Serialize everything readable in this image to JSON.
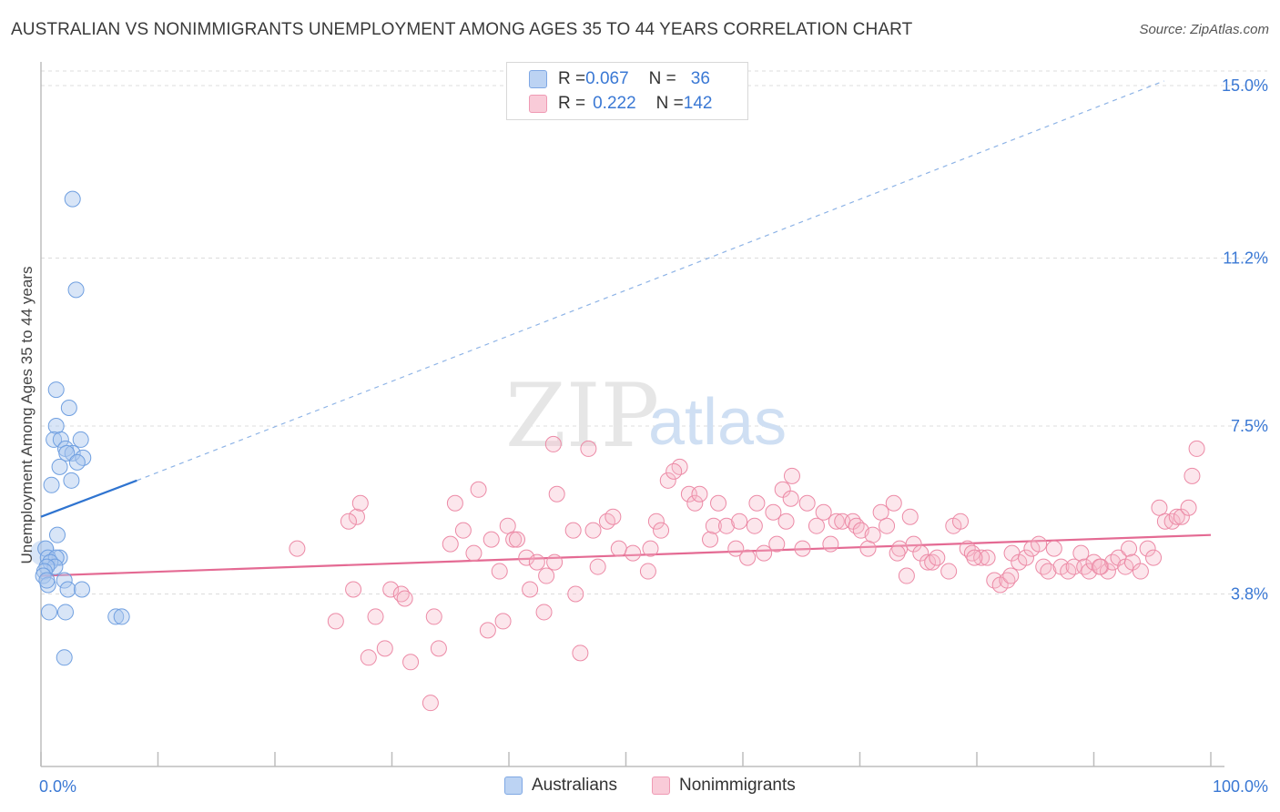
{
  "title": "AUSTRALIAN VS NONIMMIGRANTS UNEMPLOYMENT AMONG AGES 35 TO 44 YEARS CORRELATION CHART",
  "source": "Source: ZipAtlas.com",
  "watermark": {
    "zip": "ZIP",
    "atlas": "atlas"
  },
  "legend": {
    "rows": [
      {
        "r_label": "R = ",
        "r_value": "0.067",
        "n_label": "N = ",
        "n_value": "36",
        "color": "#a9c6ee"
      },
      {
        "r_label": "R = ",
        "r_value": "0.222",
        "n_label": "N = ",
        "n_value": "142",
        "color": "#f5b6c8"
      }
    ]
  },
  "bottom_legend": [
    {
      "label": "Australians",
      "color": "#a9c6ee"
    },
    {
      "label": "Nonimmigrants",
      "color": "#f5b6c8"
    }
  ],
  "chart_data": {
    "type": "scatter",
    "xlabel": "",
    "ylabel": "Unemployment Among Ages 35 to 44 years",
    "xlim": [
      0,
      100
    ],
    "ylim": [
      0,
      15.4
    ],
    "x_tick_labels": [
      "0.0%",
      "100.0%"
    ],
    "y_ticks": [
      3.8,
      7.5,
      11.2,
      15.0
    ],
    "y_tick_labels": [
      "3.8%",
      "7.5%",
      "11.2%",
      "15.0%"
    ],
    "grid": "horizontal dashed",
    "legend_position": "top-center",
    "series": [
      {
        "name": "Australians",
        "color": "#6f9fe0",
        "points": [
          [
            2.7,
            12.5
          ],
          [
            3.0,
            10.5
          ],
          [
            1.3,
            8.3
          ],
          [
            2.4,
            7.9
          ],
          [
            1.3,
            7.5
          ],
          [
            1.1,
            7.2
          ],
          [
            1.7,
            7.2
          ],
          [
            3.4,
            7.2
          ],
          [
            2.1,
            7.0
          ],
          [
            2.7,
            6.9
          ],
          [
            2.2,
            6.9
          ],
          [
            3.6,
            6.8
          ],
          [
            3.1,
            6.7
          ],
          [
            1.6,
            6.6
          ],
          [
            2.6,
            6.3
          ],
          [
            0.9,
            6.2
          ],
          [
            1.4,
            5.1
          ],
          [
            0.4,
            4.8
          ],
          [
            1.6,
            4.6
          ],
          [
            0.6,
            4.6
          ],
          [
            1.3,
            4.6
          ],
          [
            0.8,
            4.5
          ],
          [
            1.2,
            4.4
          ],
          [
            0.5,
            4.4
          ],
          [
            0.3,
            4.3
          ],
          [
            0.2,
            4.2
          ],
          [
            2.0,
            4.1
          ],
          [
            0.6,
            4.0
          ],
          [
            0.5,
            4.1
          ],
          [
            2.3,
            3.9
          ],
          [
            3.5,
            3.9
          ],
          [
            0.7,
            3.4
          ],
          [
            2.1,
            3.4
          ],
          [
            6.4,
            3.3
          ],
          [
            6.9,
            3.3
          ],
          [
            2.0,
            2.4
          ]
        ]
      },
      {
        "name": "Nonimmigrants",
        "color": "#ec8aa6",
        "points": [
          [
            21.9,
            4.8
          ],
          [
            26.7,
            3.9
          ],
          [
            27.0,
            5.5
          ],
          [
            27.3,
            5.8
          ],
          [
            25.2,
            3.2
          ],
          [
            26.3,
            5.4
          ],
          [
            28.0,
            2.4
          ],
          [
            28.6,
            3.3
          ],
          [
            29.4,
            2.6
          ],
          [
            29.9,
            3.9
          ],
          [
            30.8,
            3.8
          ],
          [
            31.1,
            3.7
          ],
          [
            31.6,
            2.3
          ],
          [
            33.3,
            1.4
          ],
          [
            33.6,
            3.3
          ],
          [
            34.0,
            2.6
          ],
          [
            35.0,
            4.9
          ],
          [
            35.4,
            5.8
          ],
          [
            36.1,
            5.2
          ],
          [
            37.0,
            4.7
          ],
          [
            37.4,
            6.1
          ],
          [
            38.2,
            3.0
          ],
          [
            38.5,
            5.0
          ],
          [
            39.2,
            4.3
          ],
          [
            39.5,
            3.2
          ],
          [
            39.9,
            5.3
          ],
          [
            40.4,
            5.0
          ],
          [
            40.7,
            5.0
          ],
          [
            41.5,
            4.6
          ],
          [
            41.8,
            3.9
          ],
          [
            42.4,
            4.5
          ],
          [
            43.0,
            3.4
          ],
          [
            43.2,
            4.2
          ],
          [
            43.8,
            7.1
          ],
          [
            43.9,
            4.5
          ],
          [
            44.1,
            6.0
          ],
          [
            45.5,
            5.2
          ],
          [
            45.7,
            3.8
          ],
          [
            46.1,
            2.5
          ],
          [
            46.8,
            7.0
          ],
          [
            47.2,
            5.2
          ],
          [
            47.6,
            4.4
          ],
          [
            48.4,
            5.4
          ],
          [
            48.9,
            5.5
          ],
          [
            49.4,
            4.8
          ],
          [
            50.6,
            4.7
          ],
          [
            51.9,
            4.3
          ],
          [
            52.1,
            4.8
          ],
          [
            52.6,
            5.4
          ],
          [
            53.0,
            5.2
          ],
          [
            53.6,
            6.3
          ],
          [
            54.6,
            6.6
          ],
          [
            54.1,
            6.5
          ],
          [
            55.4,
            6.0
          ],
          [
            55.9,
            5.8
          ],
          [
            56.3,
            6.0
          ],
          [
            57.2,
            5.0
          ],
          [
            57.5,
            5.3
          ],
          [
            57.9,
            5.8
          ],
          [
            58.6,
            5.3
          ],
          [
            59.4,
            4.8
          ],
          [
            59.7,
            5.4
          ],
          [
            60.4,
            4.6
          ],
          [
            61.0,
            5.3
          ],
          [
            61.2,
            5.8
          ],
          [
            61.8,
            4.7
          ],
          [
            62.6,
            5.6
          ],
          [
            62.9,
            4.9
          ],
          [
            63.4,
            6.1
          ],
          [
            63.7,
            5.4
          ],
          [
            64.1,
            5.9
          ],
          [
            64.2,
            6.4
          ],
          [
            65.1,
            4.8
          ],
          [
            65.5,
            5.8
          ],
          [
            66.3,
            5.3
          ],
          [
            66.9,
            5.6
          ],
          [
            67.5,
            4.9
          ],
          [
            68.0,
            5.4
          ],
          [
            68.5,
            5.4
          ],
          [
            69.4,
            5.4
          ],
          [
            69.7,
            5.3
          ],
          [
            70.1,
            5.2
          ],
          [
            70.7,
            4.8
          ],
          [
            71.1,
            5.1
          ],
          [
            71.8,
            5.6
          ],
          [
            72.3,
            5.3
          ],
          [
            72.9,
            5.8
          ],
          [
            73.4,
            4.8
          ],
          [
            74.0,
            4.2
          ],
          [
            74.3,
            5.5
          ],
          [
            74.6,
            4.9
          ],
          [
            75.2,
            4.7
          ],
          [
            75.8,
            4.5
          ],
          [
            76.2,
            4.5
          ],
          [
            76.6,
            4.6
          ],
          [
            78.0,
            5.3
          ],
          [
            78.6,
            5.4
          ],
          [
            79.2,
            4.8
          ],
          [
            79.6,
            4.7
          ],
          [
            80.4,
            4.6
          ],
          [
            80.9,
            4.6
          ],
          [
            81.5,
            4.1
          ],
          [
            82.0,
            4.0
          ],
          [
            82.6,
            4.1
          ],
          [
            83.0,
            4.7
          ],
          [
            83.6,
            4.5
          ],
          [
            84.2,
            4.6
          ],
          [
            84.7,
            4.8
          ],
          [
            85.3,
            4.9
          ],
          [
            85.7,
            4.4
          ],
          [
            86.1,
            4.3
          ],
          [
            86.6,
            4.8
          ],
          [
            87.2,
            4.4
          ],
          [
            87.8,
            4.3
          ],
          [
            88.3,
            4.4
          ],
          [
            88.9,
            4.7
          ],
          [
            89.2,
            4.4
          ],
          [
            89.6,
            4.3
          ],
          [
            90.0,
            4.5
          ],
          [
            90.6,
            4.4
          ],
          [
            91.2,
            4.3
          ],
          [
            91.6,
            4.5
          ],
          [
            92.1,
            4.6
          ],
          [
            92.7,
            4.4
          ],
          [
            93.0,
            4.8
          ],
          [
            93.3,
            4.5
          ],
          [
            94.0,
            4.3
          ],
          [
            94.6,
            4.8
          ],
          [
            95.1,
            4.6
          ],
          [
            95.6,
            5.7
          ],
          [
            96.1,
            5.4
          ],
          [
            96.7,
            5.4
          ],
          [
            97.1,
            5.5
          ],
          [
            97.5,
            5.5
          ],
          [
            98.1,
            5.7
          ],
          [
            98.4,
            6.4
          ],
          [
            98.8,
            7.0
          ],
          [
            79.8,
            4.6
          ],
          [
            82.9,
            4.2
          ],
          [
            90.5,
            4.4
          ],
          [
            77.6,
            4.3
          ],
          [
            73.2,
            4.7
          ]
        ]
      }
    ],
    "trend_lines": [
      {
        "series": "Australians",
        "x0": 0,
        "y0": 5.5,
        "x1": 8.2,
        "y1": 6.3,
        "dashed_x1": 96.0,
        "dashed_y1": 15.1
      },
      {
        "series": "Nonimmigrants",
        "x0": 0,
        "y0": 4.2,
        "x1": 100,
        "y1": 5.1
      }
    ]
  }
}
